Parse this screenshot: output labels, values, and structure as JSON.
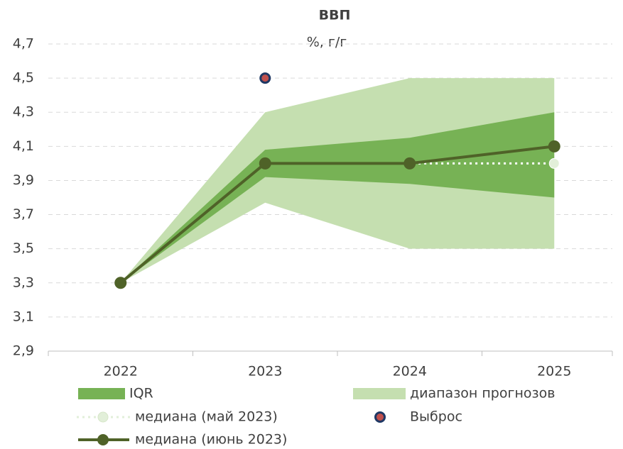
{
  "chart_data": {
    "type": "line",
    "title": "ВВП",
    "subtitle": "%, г/г",
    "categories": [
      "2022",
      "2023",
      "2024",
      "2025"
    ],
    "ylim": [
      2.9,
      4.7
    ],
    "yticks": [
      {
        "value": 2.9,
        "label": "2,9"
      },
      {
        "value": 3.1,
        "label": "3,1"
      },
      {
        "value": 3.3,
        "label": "3,3"
      },
      {
        "value": 3.5,
        "label": "3,5"
      },
      {
        "value": 3.7,
        "label": "3,7"
      },
      {
        "value": 3.9,
        "label": "3,9"
      },
      {
        "value": 4.1,
        "label": "4,1"
      },
      {
        "value": 4.3,
        "label": "4,3"
      },
      {
        "value": 4.5,
        "label": "4,5"
      },
      {
        "value": 4.7,
        "label": "4,7"
      }
    ],
    "grid": true,
    "bands": [
      {
        "name": "диапазон прогнозов",
        "color": "#c5dfb0",
        "low": [
          3.3,
          3.77,
          3.5,
          3.5
        ],
        "high": [
          3.3,
          4.3,
          4.5,
          4.5
        ]
      },
      {
        "name": "IQR",
        "color": "#77b255",
        "low": [
          3.3,
          3.92,
          3.88,
          3.8
        ],
        "high": [
          3.3,
          4.08,
          4.15,
          4.3
        ]
      }
    ],
    "series": [
      {
        "name": "медиана (май 2023)",
        "color": "#ffffff",
        "marker_fill": "#e2efd9",
        "dashed": true,
        "values": [
          3.3,
          4.0,
          4.0,
          4.0
        ]
      },
      {
        "name": "медиана (июнь 2023)",
        "color": "#4f6228",
        "marker_fill": "#4f6228",
        "dashed": false,
        "values": [
          3.3,
          4.0,
          4.0,
          4.1
        ]
      }
    ],
    "outliers": {
      "name": "Выброс",
      "color": "#c0504d",
      "edge": "#1f3864",
      "values": [
        null,
        4.5,
        null,
        null
      ]
    }
  }
}
